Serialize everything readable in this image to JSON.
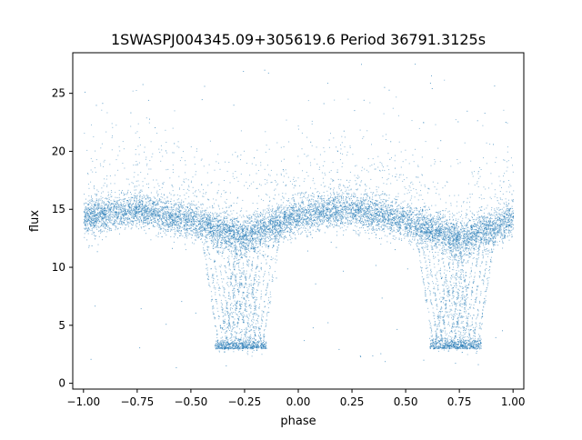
{
  "chart_data": {
    "type": "scatter",
    "title": "1SWASPJ004345.09+305619.6 Period 36791.3125s",
    "xlabel": "phase",
    "ylabel": "flux",
    "xlim": [
      -1.05,
      1.05
    ],
    "ylim": [
      -0.5,
      28.5
    ],
    "xticks": [
      -1.0,
      -0.75,
      -0.5,
      -0.25,
      0.0,
      0.25,
      0.5,
      0.75,
      1.0
    ],
    "xtick_labels": [
      "−1.00",
      "−0.75",
      "−0.50",
      "−0.25",
      "0.00",
      "0.25",
      "0.50",
      "0.75",
      "1.00"
    ],
    "yticks": [
      0,
      5,
      10,
      15,
      20,
      25
    ],
    "ytick_labels": [
      "0",
      "5",
      "10",
      "15",
      "20",
      "25"
    ],
    "grid": false,
    "marker_color": "#1f77b4",
    "series": [
      {
        "description_of_points": "folded light curve",
        "envelope_phase": [
          -1.0,
          -0.75,
          -0.5,
          -0.3,
          -0.25,
          -0.1,
          0.0,
          0.25,
          0.5,
          0.7,
          0.75,
          0.9,
          1.0
        ],
        "envelope_flux_median": [
          14.3,
          15.0,
          14.0,
          12.9,
          12.7,
          13.8,
          14.5,
          15.1,
          14.0,
          12.8,
          12.6,
          13.3,
          14.3
        ],
        "eclipse_min_flux": 3.0,
        "eclipse_center_phases": [
          -0.27,
          0.73
        ]
      }
    ]
  }
}
